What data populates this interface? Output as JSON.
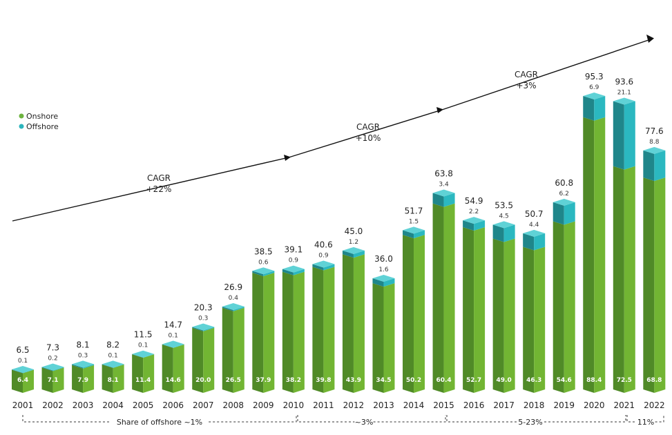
{
  "chart_data": {
    "type": "bar",
    "stacked": true,
    "categories": [
      "2001",
      "2002",
      "2003",
      "2004",
      "2005",
      "2006",
      "2007",
      "2008",
      "2009",
      "2010",
      "2011",
      "2012",
      "2013",
      "2014",
      "2015",
      "2016",
      "2017",
      "2018",
      "2019",
      "2020",
      "2021",
      "2022"
    ],
    "series": [
      {
        "name": "Onshore",
        "values": [
          6.4,
          7.1,
          7.9,
          8.1,
          11.4,
          14.6,
          20.0,
          26.5,
          37.9,
          38.2,
          39.8,
          43.9,
          34.5,
          50.2,
          60.4,
          52.7,
          49.0,
          46.3,
          54.6,
          88.4,
          72.5,
          68.8
        ]
      },
      {
        "name": "Offshore",
        "values": [
          0.1,
          0.2,
          0.3,
          0.1,
          0.1,
          0.1,
          0.3,
          0.4,
          0.6,
          0.9,
          0.9,
          1.2,
          1.6,
          1.5,
          3.4,
          2.2,
          4.5,
          4.4,
          6.2,
          6.9,
          21.1,
          8.8
        ]
      }
    ],
    "onshore_labels": [
      "6.4",
      "7.1",
      "7.9",
      "8.1",
      "11.4",
      "14.6",
      "20.0",
      "26.5",
      "37.9",
      "38.2",
      "39.8",
      "43.9",
      "34.5",
      "50.2",
      "60.4",
      "52.7",
      "49.0",
      "46.3",
      "54.6",
      "88.4",
      "72.5",
      "68.8"
    ],
    "offshore_labels": [
      "0.1",
      "0.2",
      "0.3",
      "0.1",
      "0.1",
      "0.1",
      "0.3",
      "0.4",
      "0.6",
      "0.9",
      "0.9",
      "1.2",
      "1.6",
      "1.5",
      "3.4",
      "2.2",
      "4.5",
      "4.4",
      "6.2",
      "6.9",
      "21.1",
      "8.8"
    ],
    "total_labels": [
      "6.5",
      "7.3",
      "8.1",
      "8.2",
      "11.5",
      "14.7",
      "20.3",
      "26.9",
      "38.5",
      "39.1",
      "40.6",
      "45.0",
      "36.0",
      "51.7",
      "63.8",
      "54.9",
      "53.5",
      "50.7",
      "60.8",
      "95.3",
      "93.6",
      "77.6"
    ],
    "ylim": [
      0,
      100
    ],
    "legend": {
      "position": "top-left",
      "entries": [
        "Onshore",
        "Offshore"
      ]
    },
    "colors": {
      "onshore_front": "#72b533",
      "onshore_side": "#508a27",
      "onshore_top": "#8ccc47",
      "offshore_front": "#2bb8c0",
      "offshore_side": "#1f868a",
      "offshore_top": "#5fd2d6",
      "legend_onshore": "#6db33f",
      "legend_offshore": "#2cb5bd"
    },
    "cagr_annotations": [
      {
        "line1": "CAGR",
        "line2": "+22%"
      },
      {
        "line1": "CAGR",
        "line2": "+10%"
      },
      {
        "line1": "CAGR",
        "line2": "+3%"
      }
    ],
    "share_annotations": [
      {
        "label": "Share of offshore ~1%",
        "from": "2001",
        "to": "2010"
      },
      {
        "label": "~3%",
        "from": "2010",
        "to": "2015"
      },
      {
        "label": "5-23%",
        "from": "2015",
        "to": "2021"
      },
      {
        "label": "11%",
        "from": "2022",
        "to": "2022"
      }
    ]
  }
}
